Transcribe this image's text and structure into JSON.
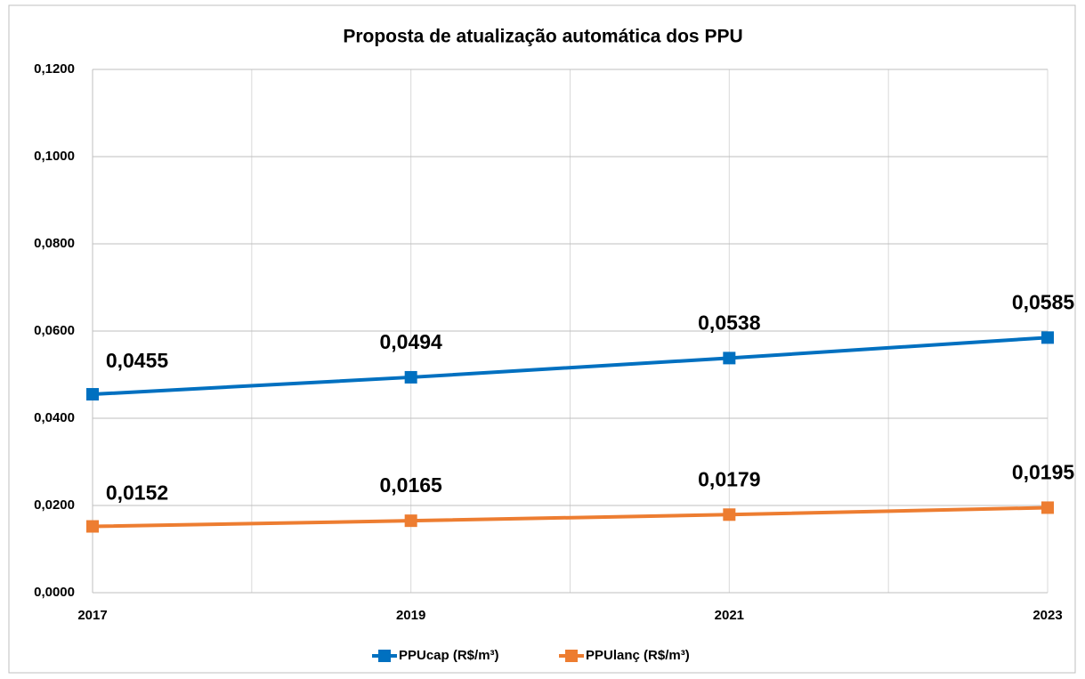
{
  "chart_data": {
    "type": "line",
    "title": "Proposta de atualização automática dos PPU",
    "x": [
      2017,
      2019,
      2021,
      2023
    ],
    "xlim": [
      2017,
      2023
    ],
    "xticks": [
      2017,
      2019,
      2021,
      2023
    ],
    "ylim": [
      0,
      0.12
    ],
    "yticks": [
      {
        "value": 0,
        "label": "0,0000"
      },
      {
        "value": 0.02,
        "label": "0,0200"
      },
      {
        "value": 0.04,
        "label": "0,0400"
      },
      {
        "value": 0.06,
        "label": "0,0600"
      },
      {
        "value": 0.08,
        "label": "0,0800"
      },
      {
        "value": 0.1,
        "label": "0,1000"
      },
      {
        "value": 0.12,
        "label": "0,1200"
      }
    ],
    "grid": true,
    "legend": "bottom",
    "series": [
      {
        "name": "PPUcap (R$/m³)",
        "color": "#0070c0",
        "values": [
          0.0455,
          0.0494,
          0.0538,
          0.0585
        ],
        "value_labels": [
          "0,0455",
          "0,0494",
          "0,0538",
          "0,0585"
        ]
      },
      {
        "name": "PPUlanç (R$/m³)",
        "color": "#ed7d31",
        "values": [
          0.0152,
          0.0165,
          0.0179,
          0.0195
        ],
        "value_labels": [
          "0,0152",
          "0,0165",
          "0,0179",
          "0,0195"
        ]
      }
    ]
  }
}
